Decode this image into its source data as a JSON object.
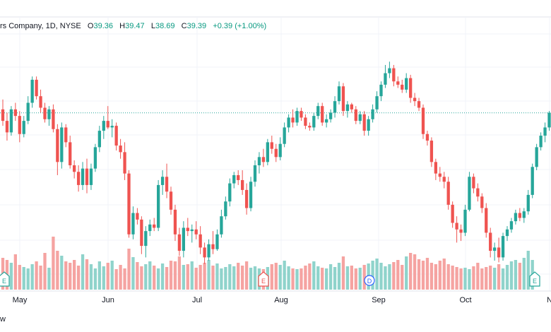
{
  "legend": {
    "symbol": "rs Company, 1D, NYSE",
    "open_label": "O",
    "open": "39.36",
    "high_label": "H",
    "high": "39.47",
    "low_label": "L",
    "low": "38.69",
    "close_label": "C",
    "close": "39.39",
    "change": "+0.39 (+1.00%)"
  },
  "footer_text": "w",
  "colors": {
    "up": "#26a69a",
    "down": "#ef5350",
    "up_vol": "#8fd3cb",
    "down_vol": "#f5a3a1",
    "grid": "#f0f3fa",
    "price_line": "#26a69a",
    "text": "#131722"
  },
  "chart_data": {
    "type": "candlestick",
    "x_tick_labels": [
      "May",
      "Jun",
      "Jul",
      "Aug",
      "Sep",
      "Oct",
      "N"
    ],
    "current_price_line": 39.39,
    "event_markers": [
      {
        "label": "E",
        "type": "earnings",
        "position": "late April"
      },
      {
        "label": "E",
        "type": "earnings",
        "position": "late July"
      },
      {
        "label": "D",
        "type": "dividend",
        "position": "late August"
      },
      {
        "label": "E",
        "type": "earnings",
        "position": "late October"
      }
    ],
    "candles": [
      {
        "o": 39.6,
        "h": 40.2,
        "l": 38.6,
        "c": 38.9
      },
      {
        "o": 38.9,
        "h": 39.4,
        "l": 37.7,
        "c": 38.2
      },
      {
        "o": 38.2,
        "h": 39.8,
        "l": 38.0,
        "c": 39.6
      },
      {
        "o": 39.6,
        "h": 40.0,
        "l": 38.9,
        "c": 39.2
      },
      {
        "o": 39.2,
        "h": 39.5,
        "l": 37.6,
        "c": 38.1
      },
      {
        "o": 38.1,
        "h": 39.2,
        "l": 37.9,
        "c": 38.9
      },
      {
        "o": 38.9,
        "h": 40.4,
        "l": 38.7,
        "c": 40.0
      },
      {
        "o": 40.0,
        "h": 41.6,
        "l": 39.7,
        "c": 41.4
      },
      {
        "o": 41.4,
        "h": 41.6,
        "l": 40.2,
        "c": 40.4
      },
      {
        "o": 40.4,
        "h": 40.8,
        "l": 39.4,
        "c": 39.7
      },
      {
        "o": 39.7,
        "h": 40.0,
        "l": 38.8,
        "c": 39.0
      },
      {
        "o": 39.0,
        "h": 39.8,
        "l": 38.6,
        "c": 39.6
      },
      {
        "o": 39.6,
        "h": 39.9,
        "l": 38.2,
        "c": 38.4
      },
      {
        "o": 38.4,
        "h": 38.7,
        "l": 35.6,
        "c": 36.4
      },
      {
        "o": 36.4,
        "h": 38.8,
        "l": 36.0,
        "c": 38.5
      },
      {
        "o": 38.5,
        "h": 38.7,
        "l": 37.3,
        "c": 37.6
      },
      {
        "o": 37.6,
        "h": 38.0,
        "l": 36.0,
        "c": 36.2
      },
      {
        "o": 36.2,
        "h": 36.5,
        "l": 35.4,
        "c": 35.8
      },
      {
        "o": 35.8,
        "h": 36.2,
        "l": 34.6,
        "c": 35.0
      },
      {
        "o": 35.0,
        "h": 36.4,
        "l": 34.7,
        "c": 36.0
      },
      {
        "o": 36.0,
        "h": 36.6,
        "l": 34.5,
        "c": 35.0
      },
      {
        "o": 35.0,
        "h": 36.3,
        "l": 34.7,
        "c": 36.0
      },
      {
        "o": 36.0,
        "h": 37.5,
        "l": 35.8,
        "c": 37.3
      },
      {
        "o": 37.3,
        "h": 38.6,
        "l": 37.0,
        "c": 38.3
      },
      {
        "o": 38.3,
        "h": 39.2,
        "l": 37.8,
        "c": 38.9
      },
      {
        "o": 38.9,
        "h": 39.8,
        "l": 38.4,
        "c": 38.5
      },
      {
        "o": 38.5,
        "h": 39.0,
        "l": 37.9,
        "c": 38.6
      },
      {
        "o": 38.6,
        "h": 38.8,
        "l": 37.1,
        "c": 37.4
      },
      {
        "o": 37.4,
        "h": 37.8,
        "l": 36.6,
        "c": 37.0
      },
      {
        "o": 37.0,
        "h": 37.6,
        "l": 35.3,
        "c": 35.7
      },
      {
        "o": 35.7,
        "h": 35.9,
        "l": 31.8,
        "c": 32.0
      },
      {
        "o": 32.0,
        "h": 33.7,
        "l": 31.7,
        "c": 33.3
      },
      {
        "o": 33.3,
        "h": 33.6,
        "l": 32.6,
        "c": 32.9
      },
      {
        "o": 32.9,
        "h": 33.1,
        "l": 30.8,
        "c": 31.3
      },
      {
        "o": 31.3,
        "h": 32.5,
        "l": 30.6,
        "c": 32.2
      },
      {
        "o": 32.2,
        "h": 32.9,
        "l": 31.9,
        "c": 32.6
      },
      {
        "o": 32.6,
        "h": 33.0,
        "l": 32.2,
        "c": 32.4
      },
      {
        "o": 32.4,
        "h": 35.3,
        "l": 32.2,
        "c": 35.0
      },
      {
        "o": 35.0,
        "h": 35.9,
        "l": 34.4,
        "c": 35.5
      },
      {
        "o": 35.5,
        "h": 36.3,
        "l": 34.2,
        "c": 34.6
      },
      {
        "o": 34.6,
        "h": 34.9,
        "l": 33.2,
        "c": 33.5
      },
      {
        "o": 33.5,
        "h": 33.8,
        "l": 31.6,
        "c": 32.0
      },
      {
        "o": 32.0,
        "h": 32.4,
        "l": 30.7,
        "c": 31.0
      },
      {
        "o": 31.0,
        "h": 32.8,
        "l": 30.6,
        "c": 32.4
      },
      {
        "o": 32.4,
        "h": 33.0,
        "l": 31.9,
        "c": 32.2
      },
      {
        "o": 32.2,
        "h": 32.6,
        "l": 31.5,
        "c": 32.3
      },
      {
        "o": 32.3,
        "h": 32.8,
        "l": 31.7,
        "c": 32.0
      },
      {
        "o": 32.0,
        "h": 32.5,
        "l": 30.8,
        "c": 31.2
      },
      {
        "o": 31.2,
        "h": 31.5,
        "l": 30.2,
        "c": 30.6
      },
      {
        "o": 30.6,
        "h": 31.7,
        "l": 30.4,
        "c": 31.4
      },
      {
        "o": 31.4,
        "h": 32.2,
        "l": 30.8,
        "c": 31.1
      },
      {
        "o": 31.1,
        "h": 32.3,
        "l": 31.0,
        "c": 32.0
      },
      {
        "o": 32.0,
        "h": 33.5,
        "l": 31.8,
        "c": 33.1
      },
      {
        "o": 33.1,
        "h": 34.3,
        "l": 32.9,
        "c": 34.0
      },
      {
        "o": 34.0,
        "h": 35.4,
        "l": 33.7,
        "c": 35.1
      },
      {
        "o": 35.1,
        "h": 35.8,
        "l": 34.8,
        "c": 35.6
      },
      {
        "o": 35.6,
        "h": 35.9,
        "l": 35.0,
        "c": 35.3
      },
      {
        "o": 35.3,
        "h": 35.9,
        "l": 34.4,
        "c": 34.7
      },
      {
        "o": 34.7,
        "h": 35.1,
        "l": 33.2,
        "c": 33.6
      },
      {
        "o": 33.6,
        "h": 35.5,
        "l": 33.4,
        "c": 35.2
      },
      {
        "o": 35.2,
        "h": 36.5,
        "l": 34.9,
        "c": 36.2
      },
      {
        "o": 36.2,
        "h": 37.0,
        "l": 35.7,
        "c": 36.7
      },
      {
        "o": 36.7,
        "h": 37.2,
        "l": 36.1,
        "c": 36.4
      },
      {
        "o": 36.4,
        "h": 37.8,
        "l": 36.2,
        "c": 37.6
      },
      {
        "o": 37.6,
        "h": 38.0,
        "l": 36.9,
        "c": 37.2
      },
      {
        "o": 37.2,
        "h": 37.5,
        "l": 36.4,
        "c": 36.7
      },
      {
        "o": 36.7,
        "h": 37.9,
        "l": 36.5,
        "c": 37.5
      },
      {
        "o": 37.5,
        "h": 38.8,
        "l": 37.3,
        "c": 38.5
      },
      {
        "o": 38.5,
        "h": 39.3,
        "l": 38.2,
        "c": 39.1
      },
      {
        "o": 39.1,
        "h": 39.6,
        "l": 38.5,
        "c": 38.8
      },
      {
        "o": 38.8,
        "h": 39.7,
        "l": 38.6,
        "c": 39.5
      },
      {
        "o": 39.5,
        "h": 39.7,
        "l": 38.9,
        "c": 39.1
      },
      {
        "o": 39.1,
        "h": 39.3,
        "l": 38.4,
        "c": 38.6
      },
      {
        "o": 38.6,
        "h": 38.8,
        "l": 38.3,
        "c": 38.5
      },
      {
        "o": 38.5,
        "h": 39.4,
        "l": 38.3,
        "c": 39.2
      },
      {
        "o": 39.2,
        "h": 40.0,
        "l": 39.0,
        "c": 39.8
      },
      {
        "o": 39.8,
        "h": 40.0,
        "l": 38.6,
        "c": 38.8
      },
      {
        "o": 38.8,
        "h": 39.3,
        "l": 38.5,
        "c": 39.0
      },
      {
        "o": 39.0,
        "h": 39.6,
        "l": 38.8,
        "c": 39.4
      },
      {
        "o": 39.4,
        "h": 40.4,
        "l": 39.1,
        "c": 40.1
      },
      {
        "o": 40.1,
        "h": 41.3,
        "l": 39.9,
        "c": 41.0
      },
      {
        "o": 41.0,
        "h": 41.2,
        "l": 39.2,
        "c": 39.5
      },
      {
        "o": 39.5,
        "h": 40.1,
        "l": 39.1,
        "c": 39.9
      },
      {
        "o": 39.9,
        "h": 40.0,
        "l": 39.4,
        "c": 39.6
      },
      {
        "o": 39.6,
        "h": 39.8,
        "l": 38.7,
        "c": 38.9
      },
      {
        "o": 38.9,
        "h": 39.5,
        "l": 38.7,
        "c": 39.3
      },
      {
        "o": 39.3,
        "h": 39.5,
        "l": 38.0,
        "c": 38.3
      },
      {
        "o": 38.3,
        "h": 39.2,
        "l": 38.0,
        "c": 39.0
      },
      {
        "o": 39.0,
        "h": 39.9,
        "l": 38.8,
        "c": 39.6
      },
      {
        "o": 39.6,
        "h": 40.7,
        "l": 39.4,
        "c": 40.4
      },
      {
        "o": 40.4,
        "h": 41.3,
        "l": 40.1,
        "c": 41.1
      },
      {
        "o": 41.1,
        "h": 42.3,
        "l": 40.9,
        "c": 41.8
      },
      {
        "o": 41.8,
        "h": 42.5,
        "l": 41.5,
        "c": 42.1
      },
      {
        "o": 42.1,
        "h": 42.3,
        "l": 41.0,
        "c": 41.3
      },
      {
        "o": 41.3,
        "h": 41.6,
        "l": 40.9,
        "c": 41.1
      },
      {
        "o": 41.1,
        "h": 41.4,
        "l": 40.6,
        "c": 40.8
      },
      {
        "o": 40.8,
        "h": 41.8,
        "l": 40.6,
        "c": 41.5
      },
      {
        "o": 41.5,
        "h": 41.7,
        "l": 40.0,
        "c": 40.3
      },
      {
        "o": 40.3,
        "h": 40.6,
        "l": 39.8,
        "c": 40.1
      },
      {
        "o": 40.1,
        "h": 40.3,
        "l": 39.5,
        "c": 39.7
      },
      {
        "o": 39.7,
        "h": 39.9,
        "l": 37.8,
        "c": 38.1
      },
      {
        "o": 38.1,
        "h": 38.3,
        "l": 37.4,
        "c": 37.7
      },
      {
        "o": 37.7,
        "h": 37.9,
        "l": 36.1,
        "c": 36.4
      },
      {
        "o": 36.4,
        "h": 36.6,
        "l": 35.3,
        "c": 35.7
      },
      {
        "o": 35.7,
        "h": 36.1,
        "l": 35.2,
        "c": 35.5
      },
      {
        "o": 35.5,
        "h": 35.8,
        "l": 34.8,
        "c": 35.2
      },
      {
        "o": 35.2,
        "h": 35.5,
        "l": 33.5,
        "c": 33.8
      },
      {
        "o": 33.8,
        "h": 34.0,
        "l": 32.4,
        "c": 32.7
      },
      {
        "o": 32.7,
        "h": 33.1,
        "l": 31.5,
        "c": 32.3
      },
      {
        "o": 32.3,
        "h": 32.6,
        "l": 31.6,
        "c": 32.1
      },
      {
        "o": 32.1,
        "h": 33.8,
        "l": 31.9,
        "c": 33.5
      },
      {
        "o": 33.5,
        "h": 35.8,
        "l": 33.4,
        "c": 35.5
      },
      {
        "o": 35.5,
        "h": 35.7,
        "l": 34.5,
        "c": 34.8
      },
      {
        "o": 34.8,
        "h": 35.1,
        "l": 34.0,
        "c": 34.3
      },
      {
        "o": 34.3,
        "h": 34.5,
        "l": 33.3,
        "c": 33.6
      },
      {
        "o": 33.6,
        "h": 33.9,
        "l": 31.8,
        "c": 32.1
      },
      {
        "o": 32.1,
        "h": 32.4,
        "l": 30.6,
        "c": 31.0
      },
      {
        "o": 31.0,
        "h": 31.5,
        "l": 30.4,
        "c": 31.2
      },
      {
        "o": 31.2,
        "h": 31.8,
        "l": 30.3,
        "c": 30.6
      },
      {
        "o": 30.6,
        "h": 32.1,
        "l": 30.4,
        "c": 31.9
      },
      {
        "o": 31.9,
        "h": 32.5,
        "l": 31.6,
        "c": 32.3
      },
      {
        "o": 32.3,
        "h": 33.0,
        "l": 32.1,
        "c": 32.8
      },
      {
        "o": 32.8,
        "h": 33.5,
        "l": 32.6,
        "c": 33.3
      },
      {
        "o": 33.3,
        "h": 33.6,
        "l": 32.8,
        "c": 33.0
      },
      {
        "o": 33.0,
        "h": 33.6,
        "l": 32.7,
        "c": 33.4
      },
      {
        "o": 33.4,
        "h": 34.7,
        "l": 33.2,
        "c": 34.4
      },
      {
        "o": 34.4,
        "h": 36.3,
        "l": 34.2,
        "c": 36.1
      },
      {
        "o": 36.1,
        "h": 37.5,
        "l": 35.9,
        "c": 37.3
      },
      {
        "o": 37.3,
        "h": 38.2,
        "l": 37.1,
        "c": 38.0
      },
      {
        "o": 38.0,
        "h": 38.8,
        "l": 37.6,
        "c": 38.5
      },
      {
        "o": 38.5,
        "h": 39.5,
        "l": 38.3,
        "c": 39.4
      }
    ],
    "volume_relative": [
      0.45,
      0.42,
      0.38,
      0.5,
      0.35,
      0.32,
      0.3,
      0.36,
      0.4,
      0.34,
      0.52,
      0.31,
      0.75,
      0.55,
      0.48,
      0.4,
      0.38,
      0.42,
      0.34,
      0.5,
      0.43,
      0.36,
      0.3,
      0.4,
      0.33,
      0.38,
      0.41,
      0.29,
      0.35,
      0.3,
      0.58,
      0.46,
      0.39,
      0.33,
      0.36,
      0.4,
      0.34,
      0.3,
      0.37,
      0.32,
      0.41,
      0.4,
      0.47,
      0.35,
      0.36,
      0.4,
      0.31,
      0.35,
      0.38,
      0.42,
      0.34,
      0.37,
      0.3,
      0.32,
      0.36,
      0.33,
      0.38,
      0.34,
      0.4,
      0.31,
      0.33,
      0.3,
      0.29,
      0.32,
      0.36,
      0.38,
      0.35,
      0.41,
      0.33,
      0.3,
      0.29,
      0.3,
      0.34,
      0.37,
      0.4,
      0.33,
      0.31,
      0.3,
      0.36,
      0.32,
      0.38,
      0.47,
      0.33,
      0.34,
      0.3,
      0.31,
      0.35,
      0.37,
      0.41,
      0.44,
      0.38,
      0.33,
      0.36,
      0.39,
      0.42,
      0.35,
      0.47,
      0.52,
      0.5,
      0.43,
      0.41,
      0.45,
      0.38,
      0.36,
      0.41,
      0.44,
      0.36,
      0.34,
      0.32,
      0.3,
      0.31,
      0.29,
      0.33,
      0.38,
      0.3,
      0.32,
      0.34,
      0.31,
      0.36,
      0.3,
      0.35,
      0.4,
      0.42,
      0.38,
      0.45,
      0.55,
      0.42
    ]
  }
}
